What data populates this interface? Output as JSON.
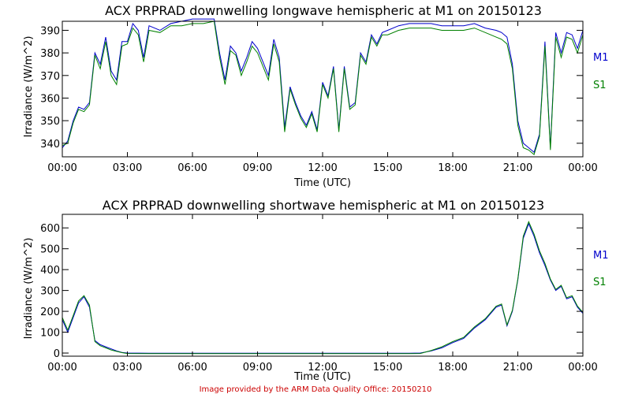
{
  "footer": "Image provided by the ARM Data Quality Office: 20150210",
  "colors": {
    "M1": "#0000cc",
    "S1": "#008000",
    "axis": "#000000",
    "footer": "#cc0000"
  },
  "chart_data": [
    {
      "type": "line",
      "title": "ACX PRPRAD downwelling longwave hemispheric at M1 on 20150123",
      "xlabel": "Time (UTC)",
      "ylabel": "Irradiance (W/m^2)",
      "xlim": [
        0,
        24
      ],
      "ylim": [
        334,
        394
      ],
      "xticks": [
        "00:00",
        "03:00",
        "06:00",
        "09:00",
        "12:00",
        "15:00",
        "18:00",
        "21:00",
        "00:00"
      ],
      "yticks": [
        340,
        350,
        360,
        370,
        380,
        390
      ],
      "legend": [
        "M1",
        "S1"
      ],
      "series": [
        {
          "name": "M1",
          "color": "#0000cc",
          "x": [
            0,
            0.25,
            0.5,
            0.75,
            1.0,
            1.25,
            1.5,
            1.75,
            2.0,
            2.25,
            2.5,
            2.75,
            3.0,
            3.25,
            3.5,
            3.75,
            4.0,
            4.5,
            5.0,
            5.5,
            6.0,
            6.5,
            7.0,
            7.25,
            7.5,
            7.75,
            8.0,
            8.25,
            8.5,
            8.75,
            9.0,
            9.25,
            9.5,
            9.75,
            10.0,
            10.25,
            10.5,
            10.75,
            11.0,
            11.25,
            11.5,
            11.75,
            12.0,
            12.25,
            12.5,
            12.75,
            13.0,
            13.25,
            13.5,
            13.75,
            14.0,
            14.25,
            14.5,
            14.75,
            15.0,
            15.5,
            16.0,
            16.5,
            17.0,
            17.5,
            18.0,
            18.5,
            19.0,
            19.5,
            20.0,
            20.25,
            20.5,
            20.75,
            21.0,
            21.25,
            21.5,
            21.75,
            22.0,
            22.25,
            22.5,
            22.75,
            23.0,
            23.25,
            23.5,
            23.75,
            24.0
          ],
          "values": [
            338,
            341,
            350,
            356,
            355,
            358,
            380,
            375,
            387,
            372,
            368,
            385,
            385,
            393,
            390,
            378,
            392,
            390,
            393,
            394,
            395,
            395,
            395,
            380,
            368,
            383,
            380,
            372,
            378,
            385,
            382,
            376,
            370,
            386,
            378,
            347,
            365,
            358,
            352,
            348,
            354,
            346,
            367,
            361,
            374,
            346,
            374,
            356,
            358,
            380,
            376,
            388,
            384,
            389,
            390,
            392,
            393,
            393,
            393,
            392,
            392,
            392,
            393,
            391,
            390,
            389,
            387,
            375,
            350,
            340,
            338,
            336,
            344,
            385,
            338,
            389,
            380,
            389,
            388,
            382,
            390
          ]
        },
        {
          "name": "S1",
          "color": "#008000",
          "x": [
            0,
            0.25,
            0.5,
            0.75,
            1.0,
            1.25,
            1.5,
            1.75,
            2.0,
            2.25,
            2.5,
            2.75,
            3.0,
            3.25,
            3.5,
            3.75,
            4.0,
            4.5,
            5.0,
            5.5,
            6.0,
            6.5,
            7.0,
            7.25,
            7.5,
            7.75,
            8.0,
            8.25,
            8.5,
            8.75,
            9.0,
            9.25,
            9.5,
            9.75,
            10.0,
            10.25,
            10.5,
            10.75,
            11.0,
            11.25,
            11.5,
            11.75,
            12.0,
            12.25,
            12.5,
            12.75,
            13.0,
            13.25,
            13.5,
            13.75,
            14.0,
            14.25,
            14.5,
            14.75,
            15.0,
            15.5,
            16.0,
            16.5,
            17.0,
            17.5,
            18.0,
            18.5,
            19.0,
            19.5,
            20.0,
            20.25,
            20.5,
            20.75,
            21.0,
            21.25,
            21.5,
            21.75,
            22.0,
            22.25,
            22.5,
            22.75,
            23.0,
            23.25,
            23.5,
            23.75,
            24.0
          ],
          "values": [
            339,
            340,
            349,
            355,
            354,
            357,
            379,
            373,
            385,
            370,
            366,
            383,
            384,
            391,
            388,
            376,
            390,
            389,
            392,
            392,
            393,
            393,
            394,
            378,
            366,
            381,
            379,
            370,
            376,
            383,
            380,
            374,
            368,
            384,
            376,
            345,
            364,
            357,
            351,
            347,
            353,
            345,
            366,
            360,
            373,
            345,
            373,
            355,
            357,
            379,
            375,
            387,
            383,
            388,
            388,
            390,
            391,
            391,
            391,
            390,
            390,
            390,
            391,
            389,
            387,
            386,
            384,
            373,
            348,
            338,
            337,
            335,
            343,
            383,
            337,
            387,
            378,
            387,
            386,
            380,
            388
          ]
        }
      ]
    },
    {
      "type": "line",
      "title": "ACX PRPRAD downwelling shortwave hemispheric at M1 on 20150123",
      "xlabel": "Time (UTC)",
      "ylabel": "Irradiance (W/m^2)",
      "xlim": [
        0,
        24
      ],
      "ylim": [
        -15,
        665
      ],
      "xticks": [
        "00:00",
        "03:00",
        "06:00",
        "09:00",
        "12:00",
        "15:00",
        "18:00",
        "21:00",
        "00:00"
      ],
      "yticks": [
        0,
        100,
        200,
        300,
        400,
        500,
        600
      ],
      "legend": [
        "M1",
        "S1"
      ],
      "series": [
        {
          "name": "M1",
          "color": "#0000cc",
          "x": [
            0,
            0.25,
            0.5,
            0.75,
            1.0,
            1.25,
            1.5,
            1.75,
            2.0,
            2.25,
            2.5,
            2.75,
            3.0,
            4,
            6,
            8,
            10,
            12,
            14,
            16,
            16.5,
            17.0,
            17.5,
            18.0,
            18.5,
            19.0,
            19.5,
            20.0,
            20.25,
            20.5,
            20.75,
            21.0,
            21.25,
            21.5,
            21.75,
            22.0,
            22.25,
            22.5,
            22.75,
            23.0,
            23.25,
            23.5,
            23.75,
            24.0
          ],
          "values": [
            160,
            100,
            170,
            240,
            270,
            220,
            60,
            40,
            30,
            20,
            10,
            3,
            0,
            -1,
            -1,
            -1,
            -1,
            -1,
            -1,
            -1,
            0,
            10,
            25,
            50,
            70,
            120,
            160,
            220,
            230,
            130,
            200,
            350,
            550,
            620,
            560,
            480,
            420,
            350,
            300,
            320,
            260,
            270,
            220,
            190
          ]
        },
        {
          "name": "S1",
          "color": "#008000",
          "x": [
            0,
            0.25,
            0.5,
            0.75,
            1.0,
            1.25,
            1.5,
            1.75,
            2.0,
            2.25,
            2.5,
            2.75,
            3.0,
            4,
            6,
            8,
            10,
            12,
            14,
            16,
            16.5,
            17.0,
            17.5,
            18.0,
            18.5,
            19.0,
            19.5,
            20.0,
            20.25,
            20.5,
            20.75,
            21.0,
            21.25,
            21.5,
            21.75,
            22.0,
            22.25,
            22.5,
            22.75,
            23.0,
            23.25,
            23.5,
            23.75,
            24.0
          ],
          "values": [
            170,
            110,
            180,
            250,
            275,
            230,
            55,
            35,
            25,
            15,
            8,
            2,
            -2,
            -3,
            -3,
            -3,
            -3,
            -3,
            -3,
            -3,
            -2,
            12,
            30,
            55,
            75,
            125,
            165,
            225,
            235,
            135,
            205,
            355,
            560,
            630,
            570,
            490,
            430,
            355,
            305,
            325,
            265,
            275,
            225,
            195
          ]
        }
      ]
    }
  ]
}
